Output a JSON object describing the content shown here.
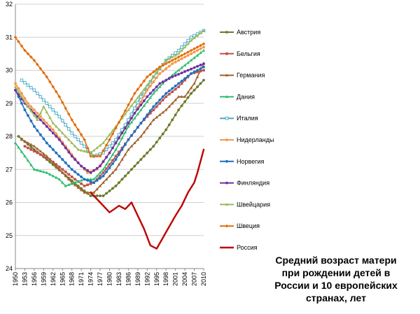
{
  "chart_data": {
    "type": "line",
    "title_lines": [
      "Средний возраст матери",
      "при рождении детей в",
      "России и 10 европейских",
      "странах, лет"
    ],
    "xlabel": "",
    "ylabel": "",
    "ylim": [
      24,
      32
    ],
    "xlim": [
      1950,
      2010
    ],
    "yticks": [
      "24",
      "25",
      "26",
      "27",
      "28",
      "29",
      "30",
      "31",
      "32"
    ],
    "xticks": [
      "1950",
      "1953",
      "1956",
      "1959",
      "1962",
      "1965",
      "1968",
      "1971",
      "1974",
      "1977",
      "1980",
      "1983",
      "1986",
      "1989",
      "1992",
      "1995",
      "1998",
      "2001",
      "2004",
      "2007",
      "2010"
    ],
    "grid": "horizontal",
    "legend_position": "right",
    "series": [
      {
        "name": "Австрия",
        "color": "#6b7b2a",
        "marker": "circle",
        "points": [
          [
            1951,
            28.0
          ],
          [
            1956,
            27.6
          ],
          [
            1960,
            27.3
          ],
          [
            1965,
            26.9
          ],
          [
            1970,
            26.5
          ],
          [
            1974,
            26.2
          ],
          [
            1978,
            26.2
          ],
          [
            1982,
            26.5
          ],
          [
            1986,
            26.9
          ],
          [
            1990,
            27.3
          ],
          [
            1994,
            27.7
          ],
          [
            1998,
            28.2
          ],
          [
            2002,
            28.8
          ],
          [
            2006,
            29.3
          ],
          [
            2010,
            29.7
          ]
        ]
      },
      {
        "name": "Бельгия",
        "color": "#c0504d",
        "marker": "square",
        "points": [
          [
            1953,
            27.7
          ],
          [
            1957,
            27.5
          ],
          [
            1961,
            27.3
          ],
          [
            1965,
            27.0
          ],
          [
            1969,
            26.7
          ],
          [
            1972,
            26.5
          ],
          [
            1975,
            26.6
          ],
          [
            1978,
            26.9
          ],
          [
            1982,
            27.4
          ],
          [
            1986,
            27.9
          ],
          [
            1990,
            28.4
          ],
          [
            1994,
            28.8
          ],
          [
            1998,
            29.2
          ],
          [
            2002,
            29.5
          ],
          [
            2006,
            29.9
          ],
          [
            2010,
            30.0
          ]
        ]
      },
      {
        "name": "Германия",
        "color": "#a0622d",
        "marker": "triangle",
        "points": [
          [
            1952,
            27.9
          ],
          [
            1956,
            27.7
          ],
          [
            1960,
            27.4
          ],
          [
            1964,
            27.0
          ],
          [
            1968,
            26.6
          ],
          [
            1972,
            26.3
          ],
          [
            1975,
            26.3
          ],
          [
            1978,
            26.6
          ],
          [
            1982,
            27.0
          ],
          [
            1986,
            27.6
          ],
          [
            1990,
            28.0
          ],
          [
            1994,
            28.5
          ],
          [
            1998,
            28.8
          ],
          [
            2002,
            29.2
          ],
          [
            2004,
            29.2
          ],
          [
            2007,
            29.6
          ],
          [
            2010,
            30.2
          ]
        ]
      },
      {
        "name": "Дания",
        "color": "#2ebd6e",
        "marker": "triangle",
        "points": [
          [
            1950,
            27.8
          ],
          [
            1953,
            27.4
          ],
          [
            1956,
            27.0
          ],
          [
            1960,
            26.9
          ],
          [
            1964,
            26.7
          ],
          [
            1966,
            26.5
          ],
          [
            1969,
            26.6
          ],
          [
            1972,
            26.7
          ],
          [
            1975,
            26.7
          ],
          [
            1978,
            27.0
          ],
          [
            1982,
            27.6
          ],
          [
            1986,
            28.3
          ],
          [
            1990,
            28.8
          ],
          [
            1994,
            29.3
          ],
          [
            1998,
            29.7
          ],
          [
            2002,
            30.0
          ],
          [
            2006,
            30.3
          ],
          [
            2010,
            30.6
          ]
        ]
      },
      {
        "name": "Италия",
        "color": "#4bacc6",
        "marker": "square-open",
        "points": [
          [
            1952,
            29.7
          ],
          [
            1956,
            29.4
          ],
          [
            1960,
            29.0
          ],
          [
            1964,
            28.6
          ],
          [
            1968,
            28.1
          ],
          [
            1972,
            27.7
          ],
          [
            1975,
            27.4
          ],
          [
            1978,
            27.5
          ],
          [
            1982,
            27.9
          ],
          [
            1986,
            28.5
          ],
          [
            1990,
            29.2
          ],
          [
            1994,
            29.8
          ],
          [
            1998,
            30.3
          ],
          [
            2002,
            30.6
          ],
          [
            2006,
            31.0
          ],
          [
            2010,
            31.2
          ]
        ]
      },
      {
        "name": "Нидерланды",
        "color": "#f79646",
        "marker": "circle",
        "points": [
          [
            1950,
            29.6
          ],
          [
            1954,
            29.0
          ],
          [
            1958,
            28.6
          ],
          [
            1962,
            28.2
          ],
          [
            1966,
            27.7
          ],
          [
            1970,
            27.2
          ],
          [
            1973,
            26.9
          ],
          [
            1976,
            27.0
          ],
          [
            1980,
            27.5
          ],
          [
            1984,
            28.1
          ],
          [
            1988,
            28.7
          ],
          [
            1992,
            29.4
          ],
          [
            1996,
            29.9
          ],
          [
            2000,
            30.2
          ],
          [
            2004,
            30.4
          ],
          [
            2008,
            30.6
          ],
          [
            2010,
            30.7
          ]
        ]
      },
      {
        "name": "Норвегия",
        "color": "#1f6fbf",
        "marker": "circle",
        "points": [
          [
            1950,
            29.4
          ],
          [
            1953,
            28.8
          ],
          [
            1956,
            28.3
          ],
          [
            1960,
            27.8
          ],
          [
            1964,
            27.4
          ],
          [
            1968,
            27.0
          ],
          [
            1972,
            26.7
          ],
          [
            1975,
            26.6
          ],
          [
            1978,
            26.8
          ],
          [
            1982,
            27.3
          ],
          [
            1986,
            27.9
          ],
          [
            1990,
            28.4
          ],
          [
            1994,
            28.9
          ],
          [
            1998,
            29.3
          ],
          [
            2002,
            29.6
          ],
          [
            2006,
            29.9
          ],
          [
            2010,
            30.1
          ]
        ]
      },
      {
        "name": "Финляндия",
        "color": "#7030a0",
        "marker": "circle",
        "points": [
          [
            1950,
            29.4
          ],
          [
            1953,
            29.0
          ],
          [
            1956,
            28.7
          ],
          [
            1960,
            28.3
          ],
          [
            1964,
            27.9
          ],
          [
            1968,
            27.4
          ],
          [
            1971,
            27.1
          ],
          [
            1974,
            26.9
          ],
          [
            1977,
            27.1
          ],
          [
            1980,
            27.5
          ],
          [
            1984,
            28.1
          ],
          [
            1988,
            28.7
          ],
          [
            1992,
            29.2
          ],
          [
            1996,
            29.6
          ],
          [
            2000,
            29.8
          ],
          [
            2005,
            30.0
          ],
          [
            2010,
            30.2
          ]
        ]
      },
      {
        "name": "Швейцария",
        "color": "#9bbb59",
        "marker": "triangle",
        "points": [
          [
            1950,
            29.5
          ],
          [
            1954,
            28.9
          ],
          [
            1957,
            28.5
          ],
          [
            1959,
            28.9
          ],
          [
            1962,
            28.4
          ],
          [
            1966,
            28.0
          ],
          [
            1970,
            27.6
          ],
          [
            1974,
            27.5
          ],
          [
            1978,
            27.8
          ],
          [
            1982,
            28.3
          ],
          [
            1986,
            28.8
          ],
          [
            1990,
            29.3
          ],
          [
            1994,
            29.8
          ],
          [
            1998,
            30.3
          ],
          [
            2002,
            30.5
          ],
          [
            2006,
            30.9
          ],
          [
            2010,
            31.2
          ]
        ]
      },
      {
        "name": "Швеция",
        "color": "#e46c0a",
        "marker": "diamond",
        "points": [
          [
            1950,
            31.0
          ],
          [
            1953,
            30.6
          ],
          [
            1956,
            30.3
          ],
          [
            1960,
            29.8
          ],
          [
            1964,
            29.2
          ],
          [
            1968,
            28.5
          ],
          [
            1972,
            27.9
          ],
          [
            1974,
            27.4
          ],
          [
            1977,
            27.4
          ],
          [
            1980,
            27.9
          ],
          [
            1984,
            28.6
          ],
          [
            1988,
            29.3
          ],
          [
            1992,
            29.8
          ],
          [
            1996,
            30.1
          ],
          [
            2000,
            30.3
          ],
          [
            2004,
            30.5
          ],
          [
            2008,
            30.7
          ],
          [
            2010,
            30.8
          ]
        ]
      },
      {
        "name": "Россия",
        "color": "#c00000",
        "marker": "none",
        "points": [
          [
            1974,
            26.3
          ],
          [
            1977,
            26.0
          ],
          [
            1980,
            25.7
          ],
          [
            1983,
            25.9
          ],
          [
            1985,
            25.8
          ],
          [
            1987,
            26.0
          ],
          [
            1989,
            25.6
          ],
          [
            1991,
            25.2
          ],
          [
            1993,
            24.7
          ],
          [
            1995,
            24.6
          ],
          [
            1998,
            25.1
          ],
          [
            2001,
            25.6
          ],
          [
            2003,
            25.9
          ],
          [
            2005,
            26.3
          ],
          [
            2007,
            26.6
          ],
          [
            2008,
            26.9
          ],
          [
            2010,
            27.6
          ]
        ]
      }
    ]
  }
}
